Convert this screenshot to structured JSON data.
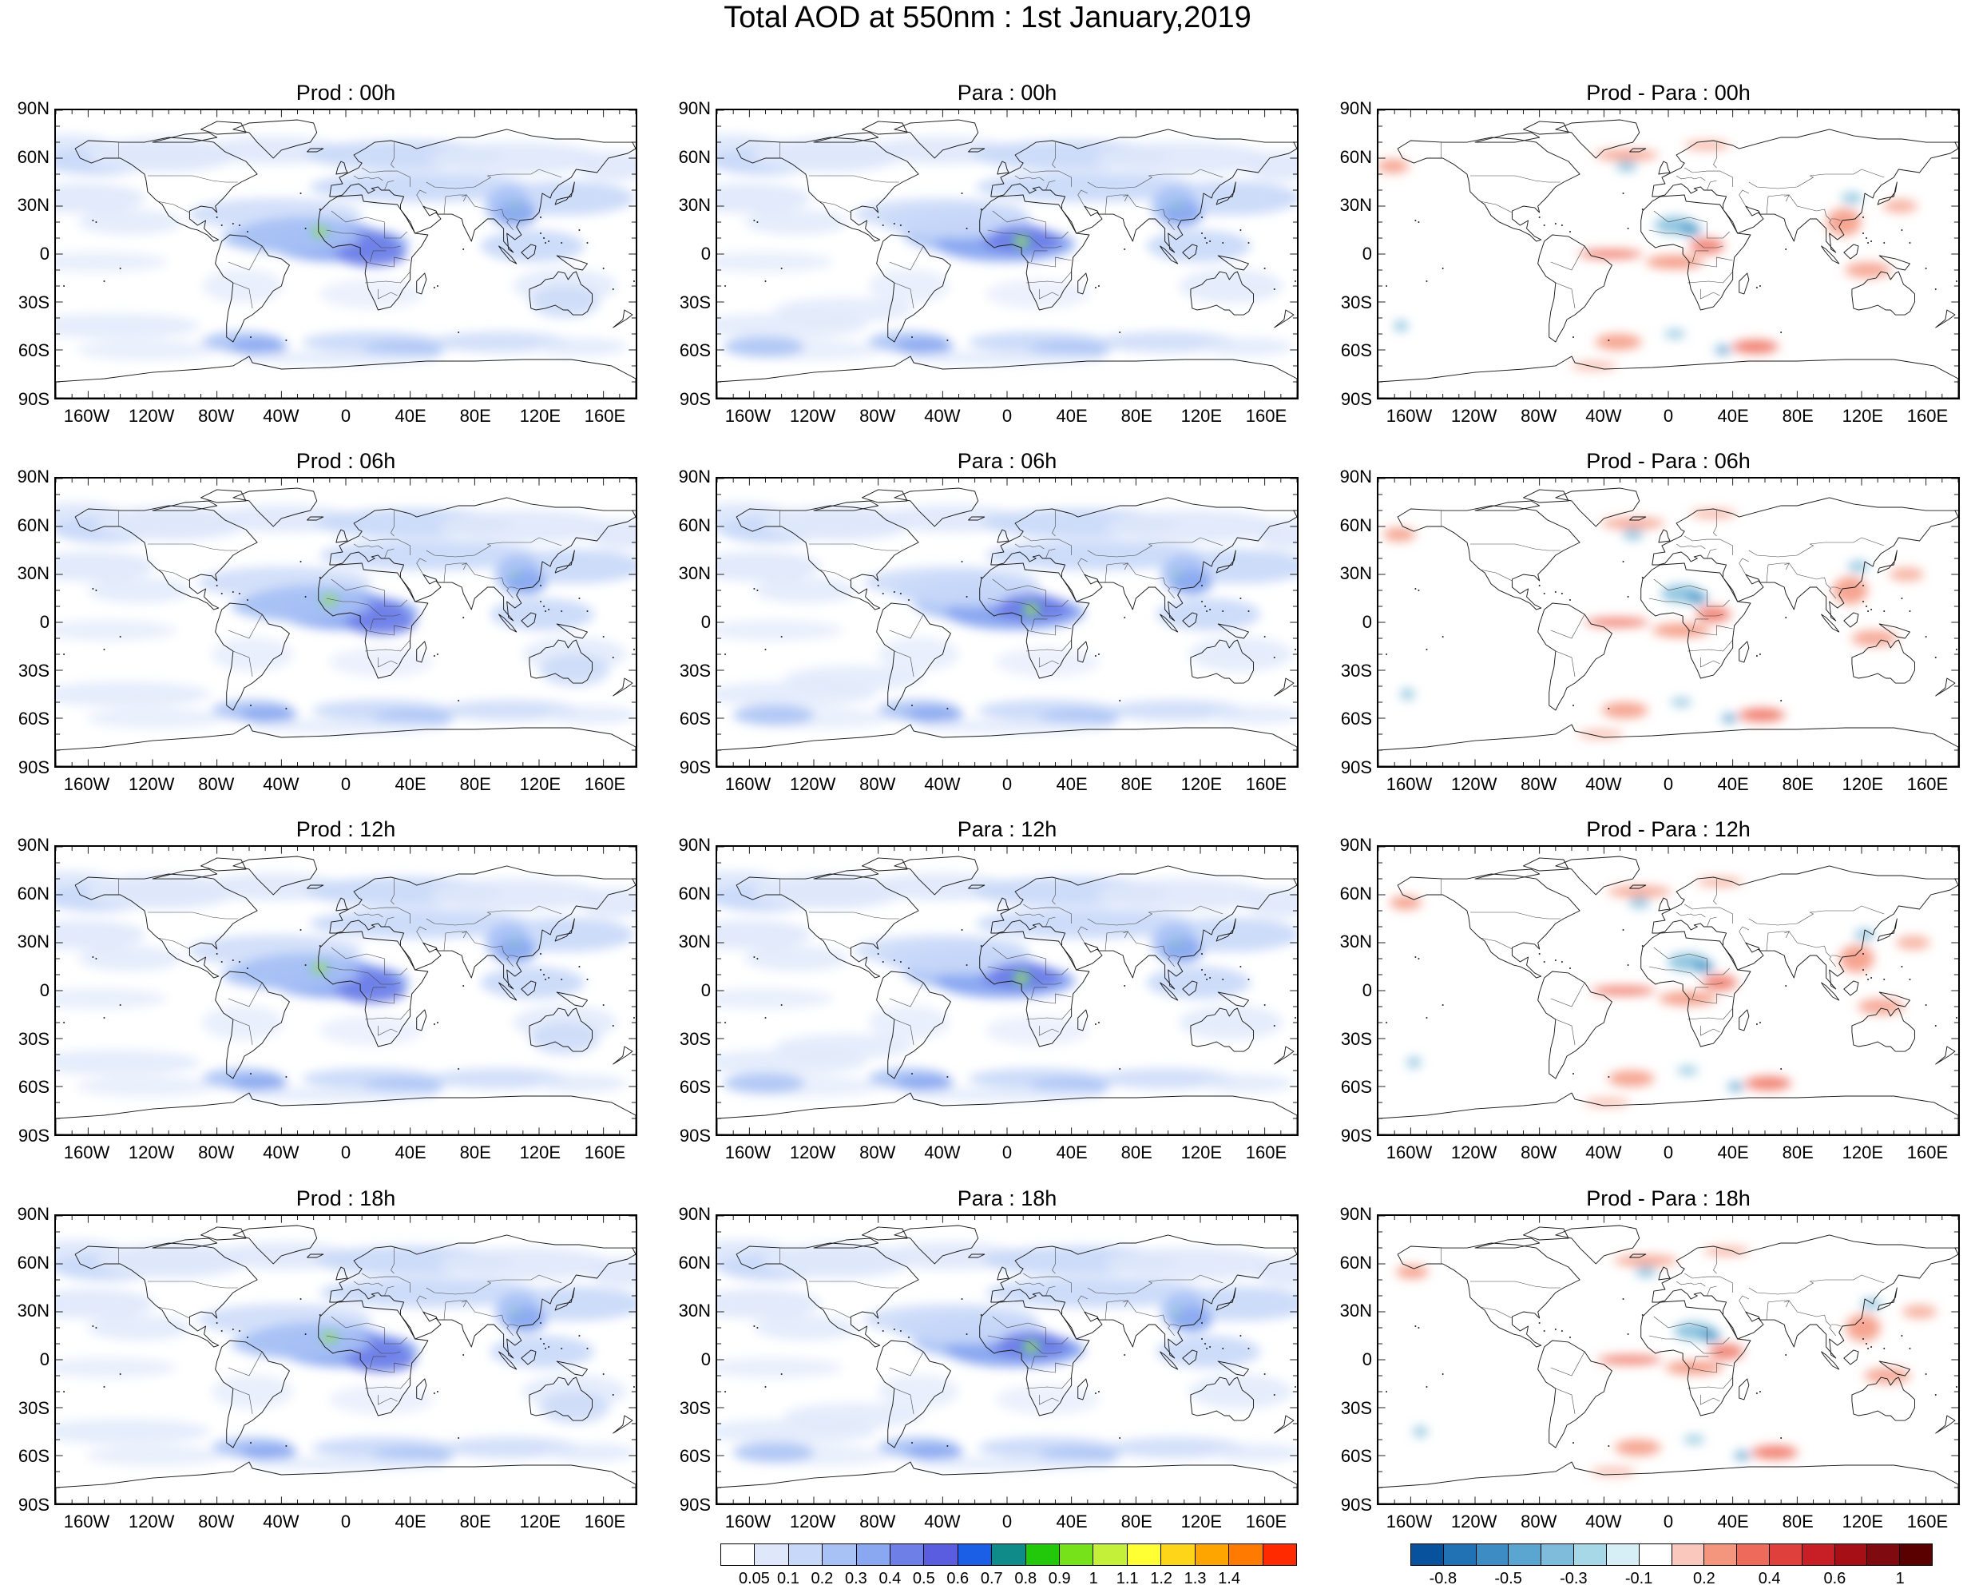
{
  "title": "Total AOD at 550nm : 1st January,2019",
  "panels": [
    {
      "title": "Prod : 00h",
      "kind": "abs",
      "var": 0
    },
    {
      "title": "Para : 00h",
      "kind": "abs",
      "var": 1
    },
    {
      "title": "Prod - Para : 00h",
      "kind": "diff",
      "var": 0
    },
    {
      "title": "Prod : 06h",
      "kind": "abs",
      "var": 2
    },
    {
      "title": "Para : 06h",
      "kind": "abs",
      "var": 3
    },
    {
      "title": "Prod - Para : 06h",
      "kind": "diff",
      "var": 1
    },
    {
      "title": "Prod : 12h",
      "kind": "abs",
      "var": 4
    },
    {
      "title": "Para : 12h",
      "kind": "abs",
      "var": 5
    },
    {
      "title": "Prod - Para : 12h",
      "kind": "diff",
      "var": 2
    },
    {
      "title": "Prod : 18h",
      "kind": "abs",
      "var": 6
    },
    {
      "title": "Para : 18h",
      "kind": "abs",
      "var": 7
    },
    {
      "title": "Prod - Para : 18h",
      "kind": "diff",
      "var": 3
    }
  ],
  "lat_labels": [
    "90N",
    "60N",
    "30N",
    "0",
    "30S",
    "60S",
    "90S"
  ],
  "lon_labels": [
    "160W",
    "120W",
    "80W",
    "40W",
    "0",
    "40E",
    "80E",
    "120E",
    "160E"
  ],
  "colorbar_abs": {
    "labels": [
      "0.05",
      "0.1",
      "0.2",
      "0.3",
      "0.4",
      "0.5",
      "0.6",
      "0.7",
      "0.8",
      "0.9",
      "1",
      "1.1",
      "1.2",
      "1.3",
      "1.4"
    ],
    "colors": [
      "#ffffff",
      "#dfe8fb",
      "#c8d8f8",
      "#a9c2f5",
      "#8aa8f1",
      "#6e7fe8",
      "#5a5de0",
      "#1a5fe6",
      "#0f8c8a",
      "#22c90a",
      "#76e21a",
      "#c4f03a",
      "#ffff33",
      "#ffd51a",
      "#ffa500",
      "#ff7a00",
      "#ff2a00"
    ]
  },
  "colorbar_diff": {
    "labels": [
      "-0.8",
      "-0.5",
      "-0.3",
      "-0.1",
      "0.2",
      "0.4",
      "0.6",
      "1"
    ],
    "colors": [
      "#08519c",
      "#2172b4",
      "#3d8dc4",
      "#5aa6d0",
      "#7fbcdb",
      "#a6d8e8",
      "#d6eef6",
      "#ffffff",
      "#fac8bd",
      "#f4957e",
      "#ee6b5b",
      "#e0403b",
      "#c81e26",
      "#a50f15",
      "#7f0a10",
      "#5a0000"
    ]
  }
}
